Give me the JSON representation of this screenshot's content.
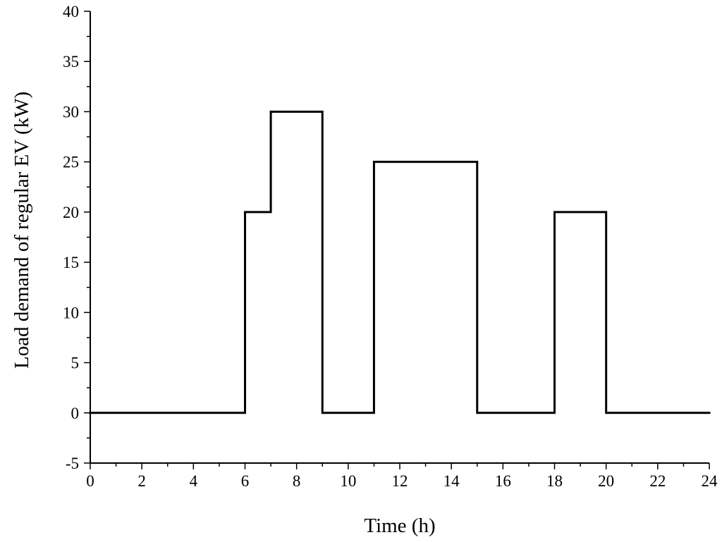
{
  "chart_data": {
    "type": "line",
    "step": true,
    "title": "",
    "xlabel": "Time (h)",
    "ylabel": "Load demand of  regular EV (kW)",
    "xlim": [
      0,
      24
    ],
    "ylim": [
      -5,
      40
    ],
    "x_major_ticks": [
      0,
      2,
      4,
      6,
      8,
      10,
      12,
      14,
      16,
      18,
      20,
      22,
      24
    ],
    "x_tick_labels": [
      "0",
      "2",
      "4",
      "6",
      "8",
      "10",
      "12",
      "14",
      "16",
      "18",
      "20",
      "22",
      "24"
    ],
    "y_major_ticks": [
      -5,
      0,
      5,
      10,
      15,
      20,
      25,
      30,
      35,
      40
    ],
    "y_tick_labels": [
      "-5",
      "0",
      "5",
      "10",
      "15",
      "20",
      "25",
      "30",
      "35",
      "40"
    ],
    "grid": false,
    "legend": "none",
    "series": [
      {
        "color": "#000000",
        "x": [
          0,
          6,
          6,
          7,
          7,
          9,
          9,
          11,
          11,
          15,
          15,
          18,
          18,
          20,
          20,
          24
        ],
        "y": [
          0,
          0,
          20,
          20,
          30,
          30,
          0,
          0,
          25,
          25,
          0,
          0,
          20,
          20,
          0,
          0
        ]
      }
    ]
  }
}
